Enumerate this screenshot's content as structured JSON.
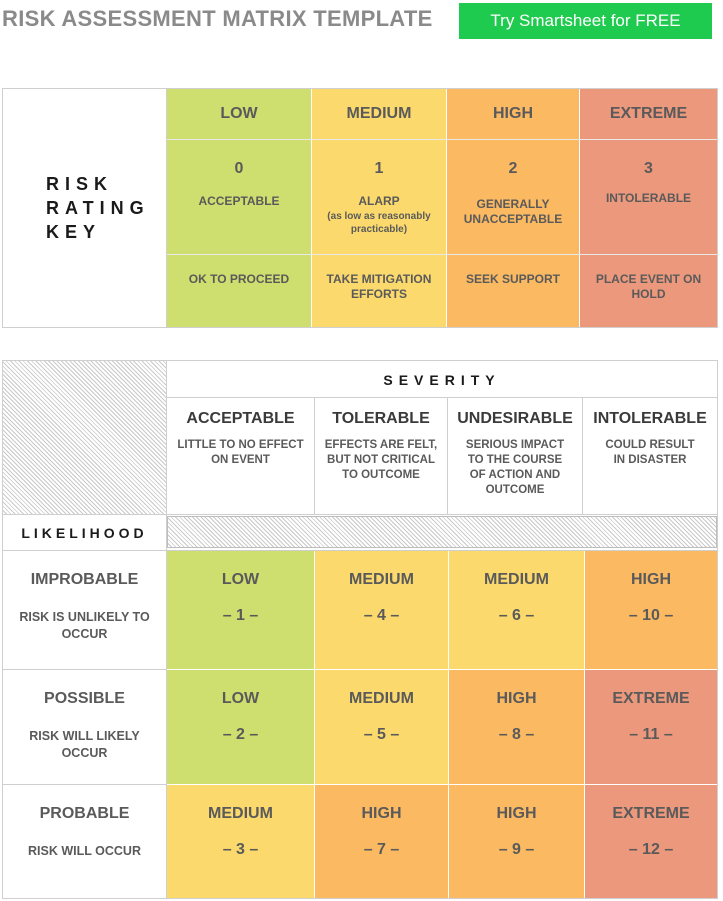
{
  "header": {
    "title": "RISK ASSESSMENT MATRIX TEMPLATE",
    "cta_label": "Try Smartsheet for FREE"
  },
  "colors": {
    "low": "#cfdf6f",
    "medium": "#fbd96c",
    "high": "#fbb962",
    "extreme": "#ec987c",
    "cta": "#1fcb4f"
  },
  "key": {
    "label_lines": [
      "RISK",
      "RATING",
      "KEY"
    ],
    "columns": [
      {
        "level": "LOW",
        "number": "0",
        "rating": "ACCEPTABLE",
        "rating_note": "",
        "action": "OK TO PROCEED"
      },
      {
        "level": "MEDIUM",
        "number": "1",
        "rating": "ALARP",
        "rating_note": "(as low as reasonably practicable)",
        "action": "TAKE MITIGATION EFFORTS"
      },
      {
        "level": "HIGH",
        "number": "2",
        "rating": "GENERALLY UNACCEPTABLE",
        "rating_note": "",
        "action": "SEEK SUPPORT"
      },
      {
        "level": "EXTREME",
        "number": "3",
        "rating": "INTOLERABLE",
        "rating_note": "",
        "action": "PLACE EVENT ON HOLD"
      }
    ]
  },
  "matrix": {
    "severity_label": "SEVERITY",
    "likelihood_label": "LIKELIHOOD",
    "severity": [
      {
        "name": "ACCEPTABLE",
        "desc": "LITTLE TO NO EFFECT ON EVENT"
      },
      {
        "name": "TOLERABLE",
        "desc": "EFFECTS ARE FELT, BUT NOT CRITICAL TO OUTCOME"
      },
      {
        "name": "UNDESIRABLE",
        "desc": "SERIOUS IMPACT TO THE COURSE OF ACTION AND OUTCOME"
      },
      {
        "name": "INTOLERABLE",
        "desc": "COULD RESULT IN DISASTER"
      }
    ],
    "rows": [
      {
        "name": "IMPROBABLE",
        "desc": "RISK IS UNLIKELY TO OCCUR",
        "cells": [
          {
            "level": "LOW",
            "score": "– 1 –",
            "color": "low"
          },
          {
            "level": "MEDIUM",
            "score": "– 4 –",
            "color": "medium"
          },
          {
            "level": "MEDIUM",
            "score": "– 6 –",
            "color": "medium"
          },
          {
            "level": "HIGH",
            "score": "– 10 –",
            "color": "high"
          }
        ]
      },
      {
        "name": "POSSIBLE",
        "desc": "RISK WILL LIKELY OCCUR",
        "cells": [
          {
            "level": "LOW",
            "score": "– 2 –",
            "color": "low"
          },
          {
            "level": "MEDIUM",
            "score": "– 5 –",
            "color": "medium"
          },
          {
            "level": "HIGH",
            "score": "– 8 –",
            "color": "high"
          },
          {
            "level": "EXTREME",
            "score": "– 11 –",
            "color": "extreme"
          }
        ]
      },
      {
        "name": "PROBABLE",
        "desc": "RISK WILL OCCUR",
        "cells": [
          {
            "level": "MEDIUM",
            "score": "– 3 –",
            "color": "medium"
          },
          {
            "level": "HIGH",
            "score": "– 7 –",
            "color": "high"
          },
          {
            "level": "HIGH",
            "score": "– 9 –",
            "color": "high"
          },
          {
            "level": "EXTREME",
            "score": "– 12 –",
            "color": "extreme"
          }
        ]
      }
    ]
  }
}
